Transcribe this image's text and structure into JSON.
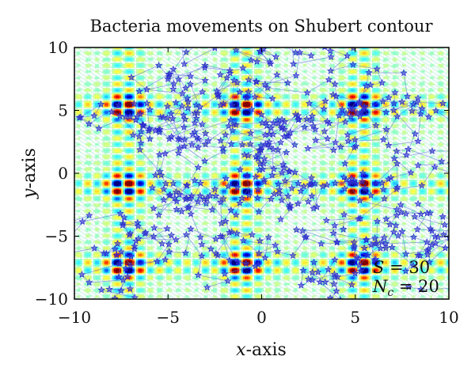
{
  "chart_data": {
    "type": "scatter",
    "title": "Bacteria movements on Shubert contour",
    "xlabel": {
      "var": "x",
      "rest": "-axis"
    },
    "ylabel": {
      "var": "y",
      "rest": "-axis"
    },
    "xlim": [
      -10,
      10
    ],
    "ylim": [
      -10,
      10
    ],
    "xticks": [
      -10,
      -5,
      0,
      5,
      10
    ],
    "yticks": [
      -10,
      -5,
      0,
      5,
      10
    ],
    "xtick_labels": [
      "−10",
      "−5",
      "0",
      "5",
      "10"
    ],
    "ytick_labels": [
      "−10",
      "−5",
      "0",
      "5",
      "10"
    ],
    "grid": false,
    "background": "Shubert function contour (jet colormap)",
    "contour_peak_centers": {
      "x": [
        -7.7,
        -1.4,
        4.9
      ],
      "y": [
        5.8,
        -0.8,
        -7.3
      ]
    },
    "annotations": [
      {
        "var": "S",
        "sub": "",
        "text": " = 30"
      },
      {
        "var": "N",
        "sub": "c",
        "text": " = 20"
      }
    ],
    "series": [
      {
        "marker": "star",
        "color": "#2a2ad0",
        "line_color": "#5a6adc",
        "num_bacteria": 30,
        "num_chemotactic_steps": 20,
        "seed": 7
      }
    ]
  }
}
